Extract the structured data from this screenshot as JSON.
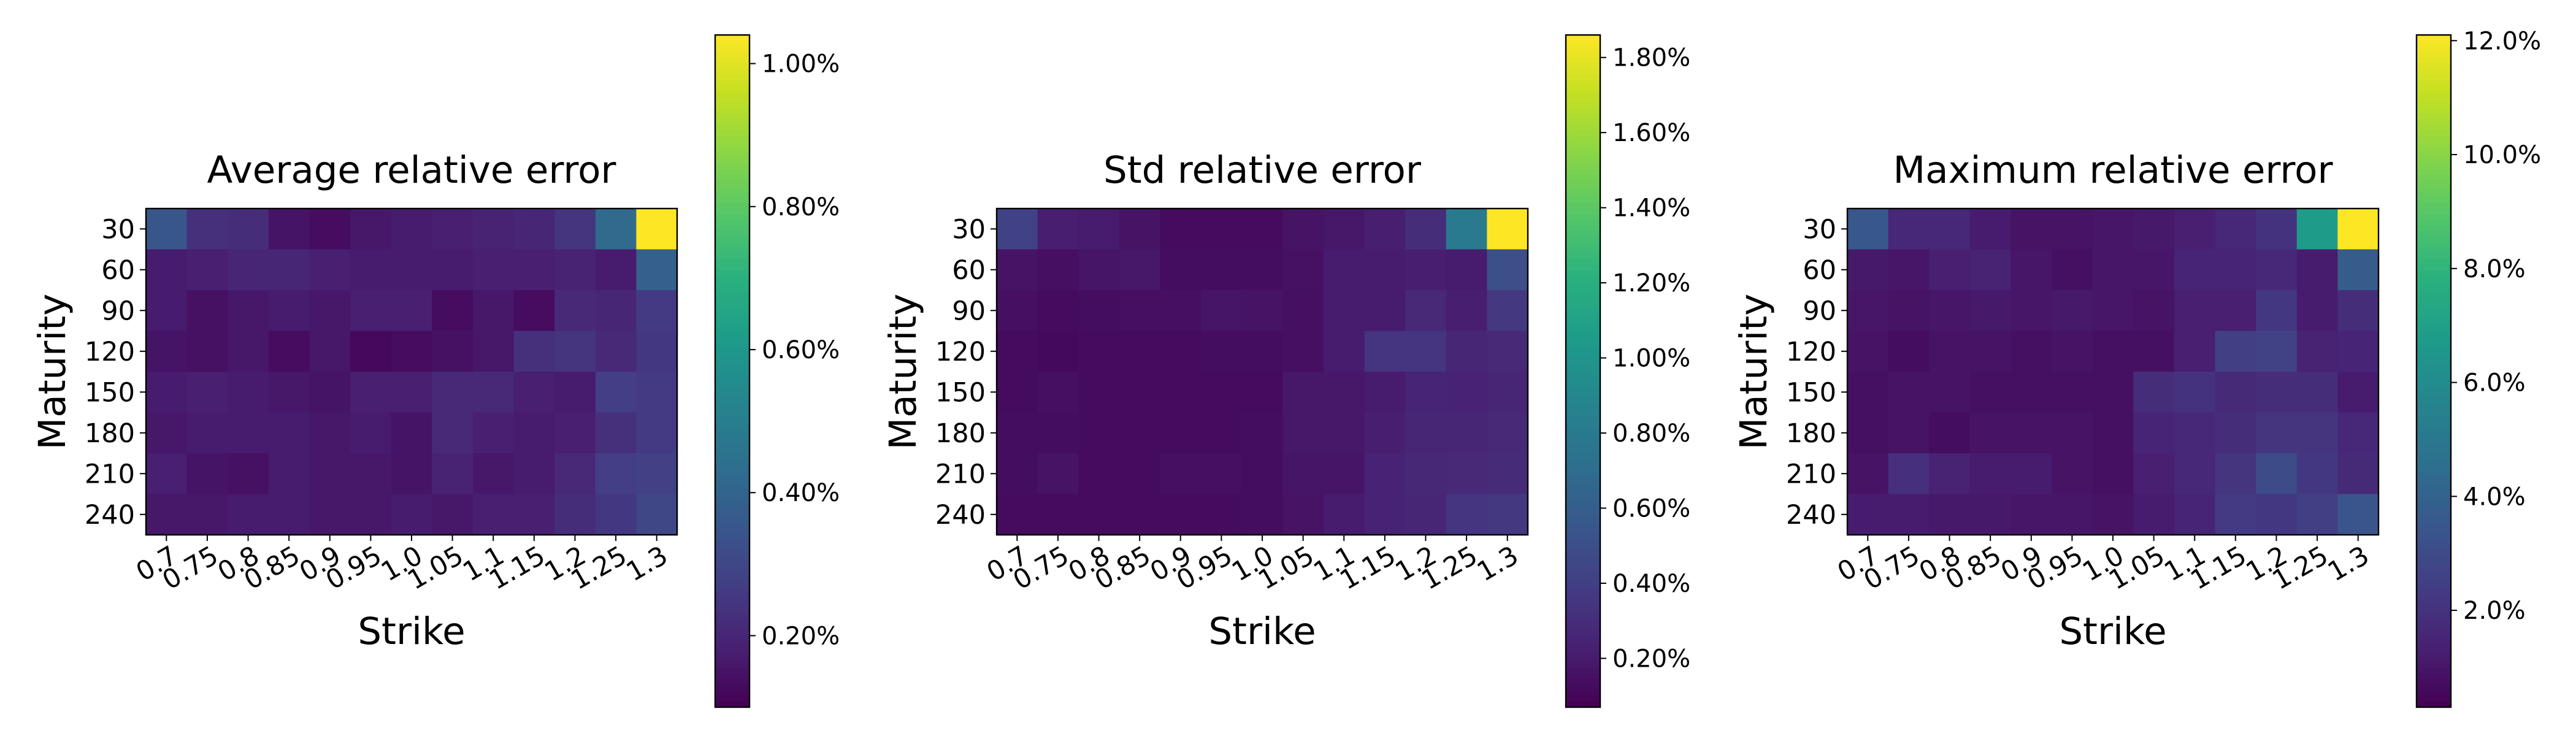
{
  "chart_data": [
    {
      "type": "heatmap",
      "title": "Average relative error",
      "xlabel": "Strike",
      "ylabel": "Maturity",
      "x_categories": [
        "0.7",
        "0.75",
        "0.8",
        "0.85",
        "0.9",
        "0.95",
        "1.0",
        "1.05",
        "1.1",
        "1.15",
        "1.2",
        "1.25",
        "1.3"
      ],
      "y_categories": [
        "30",
        "60",
        "90",
        "120",
        "150",
        "180",
        "210",
        "240"
      ],
      "value_unit": "%",
      "vmin": 0.1,
      "vmax": 1.04,
      "colorbar_ticks": [
        "0.20%",
        "0.40%",
        "0.60%",
        "0.80%",
        "1.00%"
      ],
      "colorbar_tick_values": [
        0.2,
        0.4,
        0.6,
        0.8,
        1.0
      ],
      "values": [
        [
          0.35,
          0.23,
          0.22,
          0.15,
          0.13,
          0.16,
          0.17,
          0.18,
          0.19,
          0.2,
          0.24,
          0.42,
          1.04
        ],
        [
          0.17,
          0.18,
          0.2,
          0.2,
          0.18,
          0.17,
          0.17,
          0.17,
          0.18,
          0.18,
          0.19,
          0.17,
          0.38
        ],
        [
          0.17,
          0.14,
          0.16,
          0.17,
          0.16,
          0.18,
          0.18,
          0.13,
          0.16,
          0.13,
          0.21,
          0.2,
          0.26
        ],
        [
          0.15,
          0.14,
          0.16,
          0.13,
          0.16,
          0.12,
          0.13,
          0.14,
          0.16,
          0.23,
          0.24,
          0.21,
          0.25
        ],
        [
          0.17,
          0.18,
          0.17,
          0.16,
          0.15,
          0.18,
          0.18,
          0.21,
          0.21,
          0.18,
          0.17,
          0.27,
          0.26
        ],
        [
          0.16,
          0.17,
          0.17,
          0.17,
          0.16,
          0.17,
          0.15,
          0.21,
          0.18,
          0.17,
          0.18,
          0.23,
          0.26
        ],
        [
          0.18,
          0.15,
          0.14,
          0.17,
          0.16,
          0.16,
          0.15,
          0.19,
          0.16,
          0.17,
          0.21,
          0.27,
          0.28
        ],
        [
          0.16,
          0.16,
          0.17,
          0.17,
          0.16,
          0.16,
          0.17,
          0.16,
          0.18,
          0.18,
          0.22,
          0.25,
          0.3
        ]
      ]
    },
    {
      "type": "heatmap",
      "title": "Std relative error",
      "xlabel": "Strike",
      "ylabel": "Maturity",
      "x_categories": [
        "0.7",
        "0.75",
        "0.8",
        "0.85",
        "0.9",
        "0.95",
        "1.0",
        "1.05",
        "1.1",
        "1.15",
        "1.2",
        "1.25",
        "1.3"
      ],
      "y_categories": [
        "30",
        "60",
        "90",
        "120",
        "150",
        "180",
        "210",
        "240"
      ],
      "value_unit": "%",
      "vmin": 0.07,
      "vmax": 1.86,
      "colorbar_ticks": [
        "0.20%",
        "0.40%",
        "0.60%",
        "0.80%",
        "1.00%",
        "1.20%",
        "1.40%",
        "1.60%",
        "1.80%"
      ],
      "colorbar_tick_values": [
        0.2,
        0.4,
        0.6,
        0.8,
        1.0,
        1.2,
        1.4,
        1.6,
        1.8
      ],
      "values": [
        [
          0.42,
          0.22,
          0.2,
          0.16,
          0.12,
          0.12,
          0.12,
          0.16,
          0.18,
          0.22,
          0.3,
          0.8,
          1.86
        ],
        [
          0.16,
          0.14,
          0.17,
          0.18,
          0.13,
          0.13,
          0.13,
          0.15,
          0.2,
          0.2,
          0.22,
          0.2,
          0.5
        ],
        [
          0.14,
          0.12,
          0.13,
          0.14,
          0.14,
          0.17,
          0.16,
          0.14,
          0.2,
          0.2,
          0.28,
          0.22,
          0.36
        ],
        [
          0.12,
          0.11,
          0.12,
          0.12,
          0.12,
          0.13,
          0.13,
          0.14,
          0.2,
          0.34,
          0.34,
          0.26,
          0.28
        ],
        [
          0.12,
          0.14,
          0.12,
          0.12,
          0.12,
          0.12,
          0.12,
          0.18,
          0.18,
          0.2,
          0.25,
          0.24,
          0.26
        ],
        [
          0.13,
          0.13,
          0.12,
          0.12,
          0.12,
          0.12,
          0.13,
          0.18,
          0.18,
          0.22,
          0.26,
          0.26,
          0.28
        ],
        [
          0.13,
          0.16,
          0.12,
          0.12,
          0.14,
          0.14,
          0.13,
          0.17,
          0.17,
          0.24,
          0.27,
          0.28,
          0.29
        ],
        [
          0.12,
          0.12,
          0.12,
          0.12,
          0.12,
          0.12,
          0.13,
          0.16,
          0.2,
          0.24,
          0.26,
          0.34,
          0.36
        ]
      ]
    },
    {
      "type": "heatmap",
      "title": "Maximum relative error",
      "xlabel": "Strike",
      "ylabel": "Maturity",
      "x_categories": [
        "0.7",
        "0.75",
        "0.8",
        "0.85",
        "0.9",
        "0.95",
        "1.0",
        "1.05",
        "1.1",
        "1.15",
        "1.2",
        "1.25",
        "1.3"
      ],
      "y_categories": [
        "30",
        "60",
        "90",
        "120",
        "150",
        "180",
        "210",
        "240"
      ],
      "value_unit": "%",
      "vmin": 0.3,
      "vmax": 12.1,
      "colorbar_ticks": [
        "2.0%",
        "4.0%",
        "6.0%",
        "8.0%",
        "10.0%",
        "12.0%"
      ],
      "colorbar_tick_values": [
        2.0,
        4.0,
        6.0,
        8.0,
        10.0,
        12.0
      ],
      "values": [
        [
          3.5,
          1.6,
          1.6,
          1.2,
          0.9,
          0.9,
          1.0,
          1.1,
          1.3,
          1.6,
          2.0,
          6.8,
          12.1
        ],
        [
          1.1,
          1.0,
          1.3,
          1.4,
          1.0,
          0.8,
          1.0,
          1.0,
          1.5,
          1.5,
          1.6,
          1.2,
          3.7
        ],
        [
          1.0,
          0.9,
          1.0,
          1.1,
          1.0,
          1.1,
          1.0,
          0.9,
          1.3,
          1.3,
          2.2,
          1.2,
          1.8
        ],
        [
          0.9,
          0.7,
          0.9,
          0.9,
          0.8,
          0.9,
          0.8,
          0.8,
          1.3,
          2.5,
          2.6,
          1.4,
          1.5
        ],
        [
          0.8,
          0.9,
          0.9,
          0.8,
          0.8,
          0.8,
          0.8,
          1.8,
          2.0,
          1.7,
          1.8,
          1.8,
          1.2
        ],
        [
          0.8,
          0.9,
          0.7,
          0.9,
          0.9,
          0.9,
          0.8,
          1.5,
          1.6,
          1.8,
          2.1,
          2.1,
          1.6
        ],
        [
          0.9,
          1.9,
          1.4,
          1.2,
          1.2,
          0.9,
          0.8,
          1.3,
          1.6,
          2.1,
          3.0,
          2.2,
          1.7
        ],
        [
          1.2,
          1.2,
          1.1,
          1.1,
          1.0,
          1.0,
          0.9,
          1.2,
          1.5,
          2.3,
          2.2,
          2.5,
          3.4
        ]
      ]
    }
  ]
}
